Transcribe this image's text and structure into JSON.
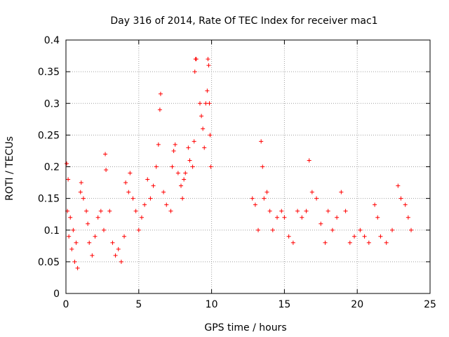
{
  "chart_data": {
    "type": "scatter",
    "title": "Day 316 of 2014, Rate Of TEC Index for receiver mac1",
    "xlabel": "GPS time / hours",
    "ylabel": "ROTI / TECUs",
    "xlim": [
      0,
      25
    ],
    "ylim": [
      0,
      0.4
    ],
    "xticks": [
      0,
      5,
      10,
      15,
      20,
      25
    ],
    "xtick_labels": [
      "0",
      "5",
      "10",
      "15",
      "20",
      "25"
    ],
    "yticks": [
      0,
      0.05,
      0.1,
      0.15,
      0.2,
      0.25,
      0.3,
      0.35,
      0.4
    ],
    "ytick_labels": [
      "0",
      "0.05",
      "0.1",
      "0.15",
      "0.2",
      "0.25",
      "0.3",
      "0.35",
      "0.4"
    ],
    "grid": true,
    "marker": "+",
    "color": "#ff0000",
    "series": [
      {
        "name": "ROTI",
        "points": [
          [
            0.05,
            0.205
          ],
          [
            0.1,
            0.13
          ],
          [
            0.15,
            0.18
          ],
          [
            0.2,
            0.09
          ],
          [
            0.3,
            0.12
          ],
          [
            0.4,
            0.07
          ],
          [
            0.5,
            0.1
          ],
          [
            0.6,
            0.05
          ],
          [
            0.7,
            0.08
          ],
          [
            0.8,
            0.04
          ],
          [
            1.0,
            0.16
          ],
          [
            1.05,
            0.175
          ],
          [
            1.2,
            0.15
          ],
          [
            1.4,
            0.13
          ],
          [
            1.5,
            0.11
          ],
          [
            1.6,
            0.08
          ],
          [
            1.8,
            0.06
          ],
          [
            2.0,
            0.09
          ],
          [
            2.2,
            0.12
          ],
          [
            2.4,
            0.13
          ],
          [
            2.6,
            0.1
          ],
          [
            2.7,
            0.22
          ],
          [
            2.75,
            0.195
          ],
          [
            3.0,
            0.13
          ],
          [
            3.2,
            0.08
          ],
          [
            3.4,
            0.06
          ],
          [
            3.6,
            0.07
          ],
          [
            3.8,
            0.05
          ],
          [
            4.0,
            0.09
          ],
          [
            4.1,
            0.175
          ],
          [
            4.3,
            0.16
          ],
          [
            4.4,
            0.19
          ],
          [
            4.6,
            0.15
          ],
          [
            4.8,
            0.13
          ],
          [
            5.0,
            0.1
          ],
          [
            5.2,
            0.12
          ],
          [
            5.4,
            0.14
          ],
          [
            5.6,
            0.18
          ],
          [
            5.8,
            0.15
          ],
          [
            6.0,
            0.17
          ],
          [
            6.2,
            0.2
          ],
          [
            6.35,
            0.235
          ],
          [
            6.45,
            0.29
          ],
          [
            6.5,
            0.315
          ],
          [
            6.7,
            0.16
          ],
          [
            6.9,
            0.14
          ],
          [
            7.2,
            0.13
          ],
          [
            7.3,
            0.2
          ],
          [
            7.4,
            0.225
          ],
          [
            7.5,
            0.235
          ],
          [
            7.7,
            0.19
          ],
          [
            7.9,
            0.17
          ],
          [
            8.0,
            0.15
          ],
          [
            8.1,
            0.18
          ],
          [
            8.2,
            0.19
          ],
          [
            8.4,
            0.23
          ],
          [
            8.5,
            0.21
          ],
          [
            8.7,
            0.2
          ],
          [
            8.8,
            0.24
          ],
          [
            8.85,
            0.35
          ],
          [
            8.9,
            0.37
          ],
          [
            8.95,
            0.37
          ],
          [
            9.2,
            0.3
          ],
          [
            9.3,
            0.28
          ],
          [
            9.4,
            0.26
          ],
          [
            9.5,
            0.23
          ],
          [
            9.6,
            0.3
          ],
          [
            9.7,
            0.32
          ],
          [
            9.75,
            0.37
          ],
          [
            9.8,
            0.36
          ],
          [
            9.85,
            0.3
          ],
          [
            9.9,
            0.25
          ],
          [
            9.95,
            0.2
          ],
          [
            12.8,
            0.15
          ],
          [
            13.0,
            0.14
          ],
          [
            13.2,
            0.1
          ],
          [
            13.4,
            0.24
          ],
          [
            13.5,
            0.2
          ],
          [
            13.6,
            0.15
          ],
          [
            13.8,
            0.16
          ],
          [
            14.0,
            0.13
          ],
          [
            14.2,
            0.1
          ],
          [
            14.5,
            0.12
          ],
          [
            14.8,
            0.13
          ],
          [
            15.0,
            0.12
          ],
          [
            15.3,
            0.09
          ],
          [
            15.6,
            0.08
          ],
          [
            15.9,
            0.13
          ],
          [
            16.2,
            0.12
          ],
          [
            16.5,
            0.13
          ],
          [
            16.7,
            0.21
          ],
          [
            16.9,
            0.16
          ],
          [
            17.2,
            0.15
          ],
          [
            17.5,
            0.11
          ],
          [
            17.8,
            0.08
          ],
          [
            18.0,
            0.13
          ],
          [
            18.3,
            0.1
          ],
          [
            18.6,
            0.12
          ],
          [
            18.9,
            0.16
          ],
          [
            19.2,
            0.13
          ],
          [
            19.5,
            0.08
          ],
          [
            19.8,
            0.09
          ],
          [
            20.2,
            0.1
          ],
          [
            20.5,
            0.09
          ],
          [
            20.8,
            0.08
          ],
          [
            21.2,
            0.14
          ],
          [
            21.4,
            0.12
          ],
          [
            21.6,
            0.09
          ],
          [
            22.0,
            0.08
          ],
          [
            22.4,
            0.1
          ],
          [
            22.8,
            0.17
          ],
          [
            23.0,
            0.15
          ],
          [
            23.3,
            0.14
          ],
          [
            23.5,
            0.12
          ],
          [
            23.7,
            0.1
          ]
        ]
      }
    ]
  }
}
